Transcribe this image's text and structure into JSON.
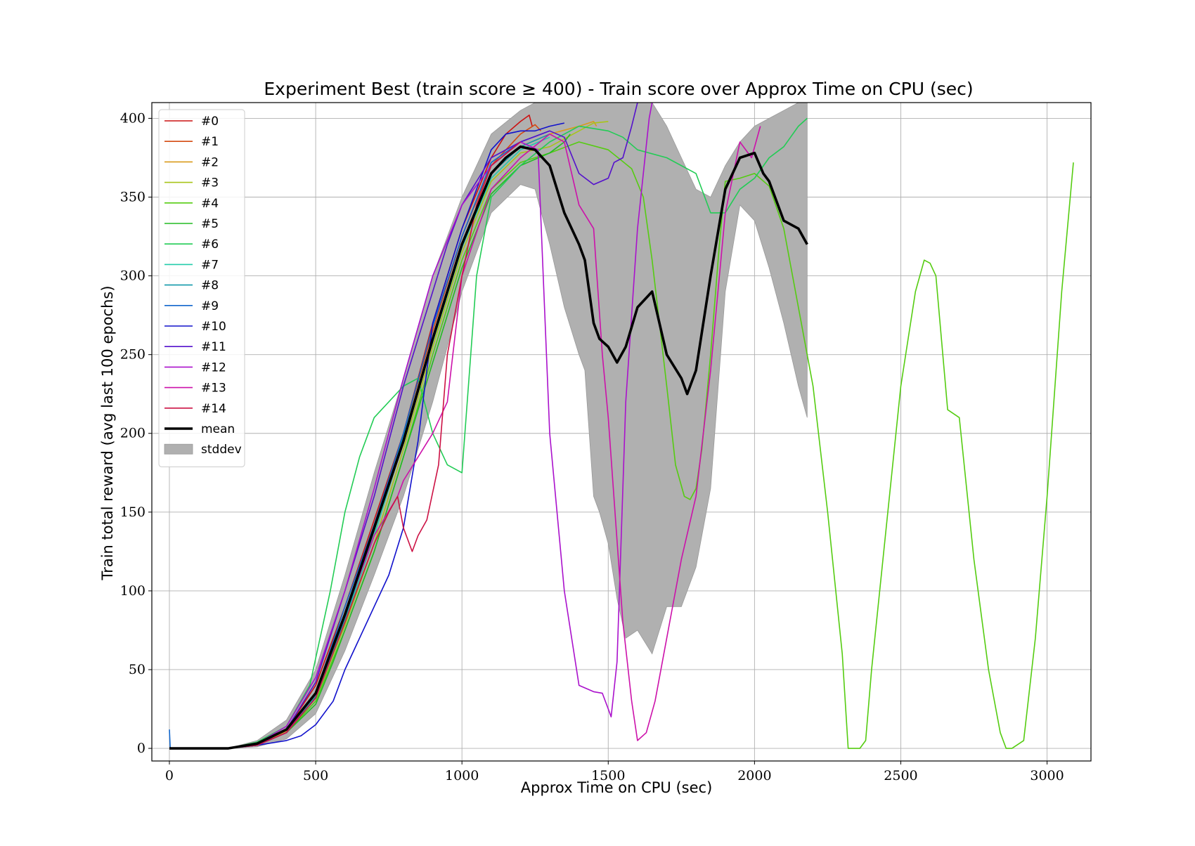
{
  "chart_data": {
    "type": "line",
    "title": "Experiment Best (train score ≥ 400) - Train score over Approx Time on CPU (sec)",
    "xlabel": "Approx Time on CPU (sec)",
    "ylabel": "Train total reward (avg last 100 epochs)",
    "xlim": [
      -60,
      3150
    ],
    "ylim": [
      -8,
      410
    ],
    "xticks": [
      0,
      500,
      1000,
      1500,
      2000,
      2500,
      3000
    ],
    "yticks": [
      0,
      50,
      100,
      150,
      200,
      250,
      300,
      350,
      400
    ],
    "grid": true,
    "legend_position": "top-left",
    "series": [
      {
        "name": "#0",
        "color": "#cc1111",
        "x": [
          0,
          200,
          300,
          400,
          500,
          600,
          700,
          800,
          900,
          1000,
          1100,
          1150,
          1200,
          1230,
          1240
        ],
        "y": [
          0,
          0,
          2,
          12,
          40,
          90,
          145,
          200,
          270,
          330,
          375,
          390,
          398,
          402,
          395
        ]
      },
      {
        "name": "#1",
        "color": "#d44a10",
        "x": [
          0,
          200,
          300,
          400,
          500,
          600,
          700,
          800,
          900,
          1000,
          1100,
          1200,
          1250,
          1270
        ],
        "y": [
          0,
          0,
          2,
          12,
          35,
          85,
          140,
          200,
          265,
          325,
          370,
          390,
          396,
          392
        ]
      },
      {
        "name": "#2",
        "color": "#d99a1a",
        "x": [
          0,
          200,
          300,
          400,
          500,
          600,
          700,
          800,
          900,
          1000,
          1100,
          1200,
          1300,
          1400,
          1450,
          1460
        ],
        "y": [
          0,
          0,
          2,
          11,
          35,
          80,
          135,
          195,
          260,
          320,
          365,
          382,
          390,
          395,
          398,
          395
        ]
      },
      {
        "name": "#3",
        "color": "#a8c418",
        "x": [
          0,
          200,
          300,
          400,
          500,
          600,
          700,
          800,
          900,
          1000,
          1100,
          1200,
          1300,
          1400,
          1450,
          1500
        ],
        "y": [
          0,
          0,
          2,
          10,
          32,
          78,
          130,
          190,
          255,
          315,
          360,
          378,
          382,
          392,
          397,
          398
        ]
      },
      {
        "name": "#4",
        "color": "#55cc11",
        "x": [
          0,
          200,
          300,
          400,
          500,
          600,
          700,
          800,
          900,
          1000,
          1100,
          1200,
          1300,
          1400,
          1500,
          1580,
          1620,
          1650,
          1700,
          1730,
          1760,
          1780,
          1800,
          1820,
          1850,
          1880,
          1900,
          1950,
          2000,
          2050,
          2100,
          2150,
          2200,
          2250,
          2300,
          2320,
          2360,
          2380,
          2400,
          2450,
          2500,
          2550,
          2580,
          2600,
          2620,
          2660,
          2700,
          2750,
          2800,
          2840,
          2860,
          2880,
          2920,
          2960,
          3000,
          3050,
          3090
        ],
        "y": [
          0,
          0,
          2,
          10,
          30,
          75,
          125,
          185,
          250,
          310,
          355,
          372,
          378,
          385,
          380,
          368,
          350,
          310,
          230,
          180,
          160,
          158,
          165,
          190,
          250,
          320,
          360,
          362,
          365,
          357,
          330,
          280,
          230,
          150,
          60,
          0,
          0,
          5,
          50,
          140,
          230,
          290,
          310,
          308,
          300,
          215,
          210,
          120,
          50,
          10,
          0,
          0,
          5,
          70,
          160,
          290,
          372
        ]
      },
      {
        "name": "#5",
        "color": "#22bb22",
        "x": [
          0,
          200,
          300,
          400,
          500,
          560,
          600,
          700,
          800,
          900,
          1000,
          1100,
          1200,
          1300,
          1350,
          1370
        ],
        "y": [
          0,
          0,
          2,
          10,
          28,
          55,
          75,
          125,
          185,
          245,
          305,
          352,
          370,
          378,
          385,
          390
        ]
      },
      {
        "name": "#6",
        "color": "#22cc55",
        "x": [
          0,
          200,
          300,
          400,
          480,
          550,
          600,
          650,
          700,
          800,
          850,
          900,
          950,
          1000,
          1050,
          1100,
          1200,
          1300,
          1400,
          1500,
          1550,
          1600,
          1700,
          1800,
          1850,
          1900,
          1950,
          2000,
          2050,
          2100,
          2150,
          2180
        ],
        "y": [
          0,
          0,
          4,
          14,
          40,
          100,
          150,
          185,
          210,
          230,
          235,
          200,
          180,
          175,
          300,
          350,
          370,
          385,
          395,
          392,
          388,
          380,
          375,
          365,
          340,
          340,
          355,
          362,
          375,
          382,
          395,
          400
        ]
      },
      {
        "name": "#7",
        "color": "#22ccaa",
        "x": [
          0,
          200,
          300,
          400,
          500,
          600,
          700,
          800,
          900,
          1000,
          1100,
          1200,
          1300
        ],
        "y": [
          0,
          0,
          2,
          10,
          32,
          80,
          135,
          195,
          258,
          318,
          362,
          380,
          388
        ]
      },
      {
        "name": "#8",
        "color": "#1199aa",
        "x": [
          0,
          200,
          300,
          400,
          500,
          600,
          700,
          800,
          900,
          1000,
          1100,
          1200,
          1300
        ],
        "y": [
          0,
          0,
          2,
          10,
          33,
          82,
          138,
          198,
          260,
          320,
          365,
          382,
          390
        ]
      },
      {
        "name": "#9",
        "color": "#1166cc",
        "x": [
          0,
          3,
          6,
          200,
          300,
          400,
          500,
          600,
          700,
          800,
          900,
          1000,
          1100,
          1200,
          1300
        ],
        "y": [
          12,
          0,
          0,
          0,
          2,
          10,
          35,
          90,
          142,
          200,
          268,
          325,
          372,
          385,
          392
        ]
      },
      {
        "name": "#10",
        "color": "#1111cc",
        "x": [
          0,
          200,
          300,
          400,
          450,
          500,
          560,
          600,
          650,
          700,
          750,
          800,
          850,
          900,
          1000,
          1100,
          1150,
          1200,
          1250,
          1300,
          1350
        ],
        "y": [
          0,
          0,
          2,
          5,
          8,
          15,
          30,
          50,
          70,
          90,
          110,
          140,
          195,
          270,
          330,
          380,
          390,
          392,
          392,
          395,
          397
        ]
      },
      {
        "name": "#11",
        "color": "#5511cc",
        "x": [
          0,
          200,
          300,
          400,
          500,
          600,
          700,
          800,
          850,
          900,
          950,
          1000,
          1100,
          1200,
          1300,
          1350,
          1400,
          1450,
          1500,
          1520,
          1550,
          1580,
          1600
        ],
        "y": [
          0,
          0,
          2,
          12,
          42,
          100,
          160,
          230,
          260,
          290,
          320,
          345,
          375,
          385,
          392,
          388,
          365,
          358,
          362,
          372,
          375,
          395,
          410
        ]
      },
      {
        "name": "#12",
        "color": "#aa11cc",
        "x": [
          0,
          200,
          300,
          400,
          500,
          600,
          700,
          800,
          900,
          1000,
          1100,
          1200,
          1260,
          1300,
          1350,
          1400,
          1450,
          1480,
          1500,
          1510,
          1530,
          1560,
          1600,
          1640,
          1650
        ],
        "y": [
          0,
          0,
          3,
          14,
          45,
          100,
          165,
          235,
          300,
          345,
          370,
          385,
          380,
          200,
          100,
          40,
          36,
          35,
          25,
          20,
          55,
          220,
          330,
          400,
          410
        ]
      },
      {
        "name": "#13",
        "color": "#cc11aa",
        "x": [
          0,
          200,
          300,
          400,
          500,
          600,
          700,
          780,
          800,
          850,
          900,
          950,
          1000,
          1100,
          1200,
          1300,
          1350,
          1400,
          1450,
          1480,
          1500,
          1550,
          1580,
          1600,
          1630,
          1660,
          1700,
          1750,
          1800,
          1850,
          1900,
          1950,
          1990,
          2020
        ],
        "y": [
          0,
          0,
          2,
          10,
          35,
          85,
          135,
          160,
          170,
          185,
          200,
          220,
          300,
          355,
          375,
          390,
          385,
          345,
          330,
          250,
          210,
          80,
          30,
          5,
          10,
          30,
          70,
          120,
          160,
          240,
          340,
          385,
          375,
          395
        ]
      },
      {
        "name": "#14",
        "color": "#cc1144",
        "x": [
          0,
          200,
          300,
          400,
          500,
          600,
          700,
          750,
          780,
          800,
          830,
          850,
          880,
          920,
          950,
          1000,
          1050,
          1100,
          1200
        ],
        "y": [
          0,
          0,
          2,
          10,
          32,
          80,
          130,
          150,
          160,
          140,
          125,
          135,
          145,
          180,
          250,
          300,
          345,
          370,
          385
        ]
      },
      {
        "name": "mean",
        "color": "#000000",
        "x": [
          0,
          200,
          300,
          400,
          500,
          600,
          700,
          800,
          900,
          1000,
          1100,
          1150,
          1200,
          1250,
          1300,
          1350,
          1400,
          1420,
          1450,
          1470,
          1500,
          1530,
          1560,
          1600,
          1650,
          1700,
          1750,
          1770,
          1800,
          1850,
          1900,
          1950,
          2000,
          2030,
          2050,
          2100,
          2150,
          2180
        ],
        "y": [
          0,
          0,
          3,
          12,
          35,
          85,
          140,
          195,
          260,
          320,
          365,
          375,
          382,
          380,
          370,
          340,
          320,
          310,
          270,
          260,
          255,
          245,
          255,
          280,
          290,
          250,
          235,
          225,
          240,
          300,
          355,
          375,
          378,
          365,
          360,
          335,
          330,
          320
        ]
      }
    ],
    "stddev_band": {
      "name": "stddev",
      "color": "#b0b0b0",
      "x": [
        0,
        200,
        300,
        400,
        500,
        600,
        700,
        800,
        900,
        1000,
        1100,
        1200,
        1250,
        1300,
        1350,
        1400,
        1420,
        1450,
        1470,
        1500,
        1530,
        1560,
        1600,
        1650,
        1700,
        1750,
        1800,
        1850,
        1900,
        1950,
        2000,
        2050,
        2100,
        2150,
        2180
      ],
      "upper": [
        0,
        0,
        5,
        18,
        50,
        110,
        175,
        235,
        300,
        350,
        390,
        405,
        410,
        410,
        410,
        410,
        410,
        410,
        410,
        410,
        410,
        410,
        410,
        410,
        395,
        375,
        355,
        350,
        370,
        385,
        395,
        400,
        405,
        410,
        410
      ],
      "lower": [
        0,
        0,
        1,
        6,
        22,
        62,
        110,
        160,
        220,
        290,
        340,
        358,
        355,
        320,
        280,
        250,
        240,
        160,
        150,
        130,
        95,
        70,
        75,
        60,
        90,
        90,
        115,
        165,
        290,
        345,
        335,
        305,
        270,
        230,
        210
      ]
    }
  },
  "legend": {
    "items": [
      {
        "label": "#0",
        "color": "#cc1111",
        "kind": "line"
      },
      {
        "label": "#1",
        "color": "#d44a10",
        "kind": "line"
      },
      {
        "label": "#2",
        "color": "#d99a1a",
        "kind": "line"
      },
      {
        "label": "#3",
        "color": "#a8c418",
        "kind": "line"
      },
      {
        "label": "#4",
        "color": "#55cc11",
        "kind": "line"
      },
      {
        "label": "#5",
        "color": "#22bb22",
        "kind": "line"
      },
      {
        "label": "#6",
        "color": "#22cc55",
        "kind": "line"
      },
      {
        "label": "#7",
        "color": "#22ccaa",
        "kind": "line"
      },
      {
        "label": "#8",
        "color": "#1199aa",
        "kind": "line"
      },
      {
        "label": "#9",
        "color": "#1166cc",
        "kind": "line"
      },
      {
        "label": "#10",
        "color": "#1111cc",
        "kind": "line"
      },
      {
        "label": "#11",
        "color": "#5511cc",
        "kind": "line"
      },
      {
        "label": "#12",
        "color": "#aa11cc",
        "kind": "line"
      },
      {
        "label": "#13",
        "color": "#cc11aa",
        "kind": "line"
      },
      {
        "label": "#14",
        "color": "#cc1144",
        "kind": "line"
      },
      {
        "label": "mean",
        "color": "#000000",
        "kind": "thick-line"
      },
      {
        "label": "stddev",
        "color": "#b0b0b0",
        "kind": "patch"
      }
    ]
  }
}
